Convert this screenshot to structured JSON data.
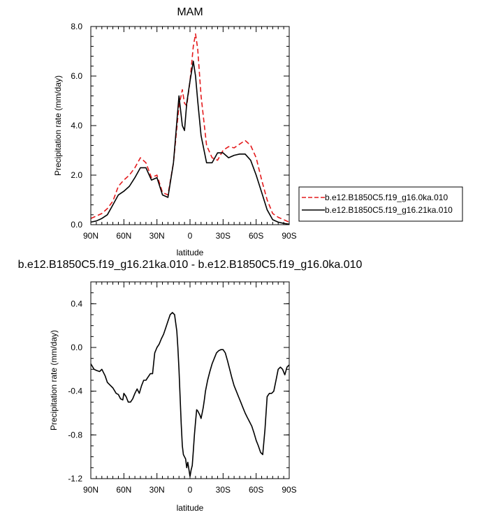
{
  "chart_data": [
    {
      "type": "line",
      "title": "MAM",
      "xlabel": "latitude",
      "ylabel": "Precipitation rate (mm/day)",
      "xlim": [
        90,
        -90
      ],
      "ylim": [
        0,
        8
      ],
      "xtick_labels": [
        "90N",
        "60N",
        "30N",
        "0",
        "30S",
        "60S",
        "90S"
      ],
      "ytick_labels": [
        "0.0",
        "2.0",
        "4.0",
        "6.0",
        "8.0"
      ],
      "legend_position": "right",
      "grid": false,
      "series": [
        {
          "name": "b.e12.B1850C5.f19_g16.0ka.010",
          "color": "#e41a1c",
          "dash": "dashed",
          "x": [
            90,
            85,
            80,
            75,
            70,
            65,
            60,
            55,
            50,
            45,
            40,
            35,
            30,
            25,
            20,
            15,
            10,
            7,
            5,
            3,
            0,
            -3,
            -5,
            -7,
            -10,
            -15,
            -20,
            -25,
            -30,
            -35,
            -40,
            -45,
            -50,
            -55,
            -60,
            -65,
            -70,
            -75,
            -80,
            -85,
            -90
          ],
          "values": [
            0.25,
            0.35,
            0.45,
            0.65,
            0.95,
            1.55,
            1.8,
            2.0,
            2.3,
            2.7,
            2.5,
            1.9,
            2.0,
            1.3,
            1.2,
            2.5,
            4.8,
            5.45,
            4.9,
            4.8,
            5.8,
            7.2,
            7.7,
            7.1,
            5.2,
            3.2,
            2.7,
            2.6,
            3.0,
            3.15,
            3.1,
            3.25,
            3.4,
            3.2,
            2.7,
            1.8,
            1.0,
            0.45,
            0.3,
            0.2,
            0.1
          ]
        },
        {
          "name": "b.e12.B1850C5.f19_g16.21ka.010",
          "color": "#000000",
          "dash": "solid",
          "x": [
            90,
            85,
            80,
            75,
            70,
            65,
            60,
            55,
            50,
            45,
            40,
            35,
            30,
            25,
            20,
            15,
            10,
            7,
            5,
            3,
            0,
            -3,
            -5,
            -7,
            -10,
            -15,
            -20,
            -25,
            -30,
            -35,
            -40,
            -45,
            -50,
            -55,
            -60,
            -65,
            -70,
            -75,
            -80,
            -85,
            -90
          ],
          "values": [
            0.1,
            0.15,
            0.25,
            0.4,
            0.8,
            1.2,
            1.35,
            1.55,
            1.9,
            2.3,
            2.3,
            1.8,
            1.9,
            1.2,
            1.1,
            2.5,
            5.2,
            4.0,
            3.8,
            4.9,
            5.8,
            6.6,
            6.0,
            5.0,
            3.6,
            2.5,
            2.5,
            2.9,
            2.9,
            2.7,
            2.8,
            2.85,
            2.85,
            2.6,
            2.0,
            1.3,
            0.6,
            0.2,
            0.1,
            0.05,
            0.02
          ]
        }
      ]
    },
    {
      "type": "line",
      "title": "b.e12.B1850C5.f19_g16.21ka.010 - b.e12.B1850C5.f19_g16.0ka.010",
      "xlabel": "latitude",
      "ylabel": "Precipitation rate (mm/day)",
      "xlim": [
        90,
        -90
      ],
      "ylim": [
        -1.2,
        0.6
      ],
      "xtick_labels": [
        "90N",
        "60N",
        "30N",
        "0",
        "30S",
        "60S",
        "90S"
      ],
      "ytick_labels": [
        "-1.2",
        "-0.8",
        "-0.4",
        "0.0",
        "0.4"
      ],
      "grid": false,
      "series": [
        {
          "color": "#000000",
          "dash": "solid",
          "x": [
            90,
            87,
            85,
            82,
            80,
            77,
            75,
            72,
            70,
            67,
            65,
            63,
            61,
            60,
            58,
            56,
            54,
            52,
            50,
            48,
            46,
            44,
            42,
            40,
            38,
            36,
            34,
            32,
            30,
            28,
            26,
            24,
            22,
            20,
            18,
            16,
            14,
            12,
            11,
            10,
            9,
            8,
            7,
            6,
            5,
            4,
            3,
            2,
            0,
            -1,
            -2,
            -3,
            -4,
            -5,
            -6,
            -7,
            -8,
            -9,
            -10,
            -11,
            -12,
            -13,
            -14,
            -16,
            -18,
            -20,
            -22,
            -24,
            -26,
            -28,
            -30,
            -32,
            -34,
            -36,
            -38,
            -40,
            -42,
            -44,
            -46,
            -48,
            -50,
            -52,
            -54,
            -56,
            -58,
            -60,
            -62,
            -64,
            -66,
            -68,
            -70,
            -72,
            -74,
            -76,
            -78,
            -80,
            -82,
            -84,
            -86,
            -88,
            -90
          ],
          "values": [
            -0.15,
            -0.2,
            -0.21,
            -0.22,
            -0.2,
            -0.26,
            -0.32,
            -0.35,
            -0.37,
            -0.42,
            -0.43,
            -0.47,
            -0.48,
            -0.42,
            -0.45,
            -0.5,
            -0.5,
            -0.47,
            -0.42,
            -0.38,
            -0.42,
            -0.35,
            -0.3,
            -0.3,
            -0.27,
            -0.24,
            -0.24,
            -0.05,
            0.0,
            0.03,
            0.08,
            0.12,
            0.18,
            0.24,
            0.3,
            0.32,
            0.3,
            0.15,
            0.0,
            -0.2,
            -0.45,
            -0.7,
            -0.9,
            -0.98,
            -1.0,
            -1.02,
            -1.1,
            -1.05,
            -1.18,
            -1.12,
            -1.08,
            -0.95,
            -0.8,
            -0.68,
            -0.57,
            -0.58,
            -0.6,
            -0.62,
            -0.65,
            -0.6,
            -0.55,
            -0.48,
            -0.4,
            -0.3,
            -0.22,
            -0.15,
            -0.1,
            -0.05,
            -0.03,
            -0.02,
            -0.02,
            -0.05,
            -0.12,
            -0.2,
            -0.28,
            -0.35,
            -0.4,
            -0.45,
            -0.5,
            -0.55,
            -0.6,
            -0.64,
            -0.68,
            -0.72,
            -0.78,
            -0.85,
            -0.9,
            -0.96,
            -0.98,
            -0.75,
            -0.45,
            -0.42,
            -0.42,
            -0.4,
            -0.3,
            -0.2,
            -0.18,
            -0.2,
            -0.25,
            -0.18,
            -0.16
          ]
        }
      ]
    }
  ]
}
